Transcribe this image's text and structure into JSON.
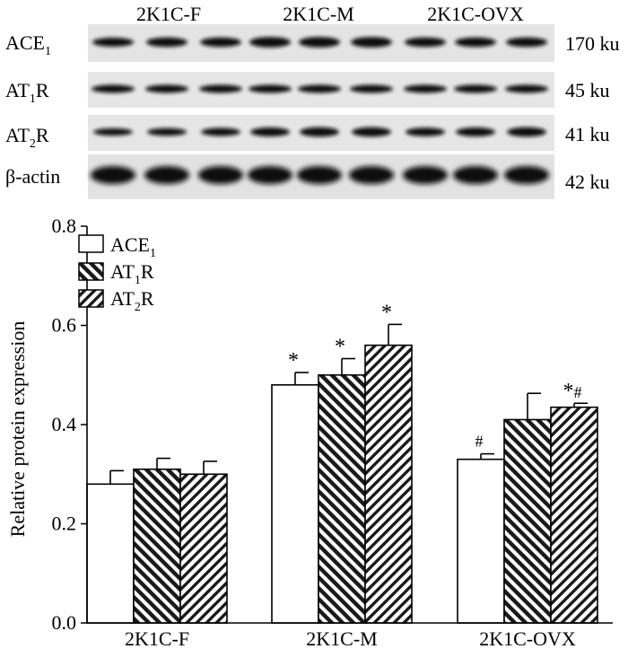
{
  "blot": {
    "group_labels": [
      "2K1C-F",
      "2K1C-M",
      "2K1C-OVX"
    ],
    "rows": [
      {
        "label": "ACE",
        "sub": "1",
        "suffix": "",
        "size": "170 ku"
      },
      {
        "label": "AT",
        "sub": "1",
        "suffix": "R",
        "size": "45 ku"
      },
      {
        "label": "AT",
        "sub": "2",
        "suffix": "R",
        "size": "41 ku"
      },
      {
        "label": "β-actin",
        "sub": "",
        "suffix": "",
        "size": "42 ku"
      }
    ]
  },
  "chart_data": {
    "type": "bar",
    "title": "",
    "xlabel": "",
    "ylabel": "Relative protein expression",
    "ylim": [
      0,
      0.8
    ],
    "yticks": [
      "0.0",
      "0.2",
      "0.4",
      "0.6",
      "0.8"
    ],
    "categories": [
      "2K1C-F",
      "2K1C-M",
      "2K1C-OVX"
    ],
    "series": [
      {
        "name": "ACE",
        "sub": "1",
        "suffix": "",
        "pattern": "white",
        "values": [
          0.28,
          0.48,
          0.33
        ],
        "errors": [
          0.027,
          0.025,
          0.011
        ],
        "annotations": [
          "",
          "*",
          "#"
        ]
      },
      {
        "name": "AT",
        "sub": "1",
        "suffix": "R",
        "pattern": "hatch-backslash",
        "values": [
          0.31,
          0.5,
          0.41
        ],
        "errors": [
          0.022,
          0.033,
          0.053
        ],
        "annotations": [
          "",
          "*",
          ""
        ]
      },
      {
        "name": "AT",
        "sub": "2",
        "suffix": "R",
        "pattern": "hatch-slash",
        "values": [
          0.3,
          0.56,
          0.435
        ],
        "errors": [
          0.026,
          0.042,
          0.008
        ],
        "annotations": [
          "",
          "*",
          "*#"
        ]
      }
    ]
  }
}
